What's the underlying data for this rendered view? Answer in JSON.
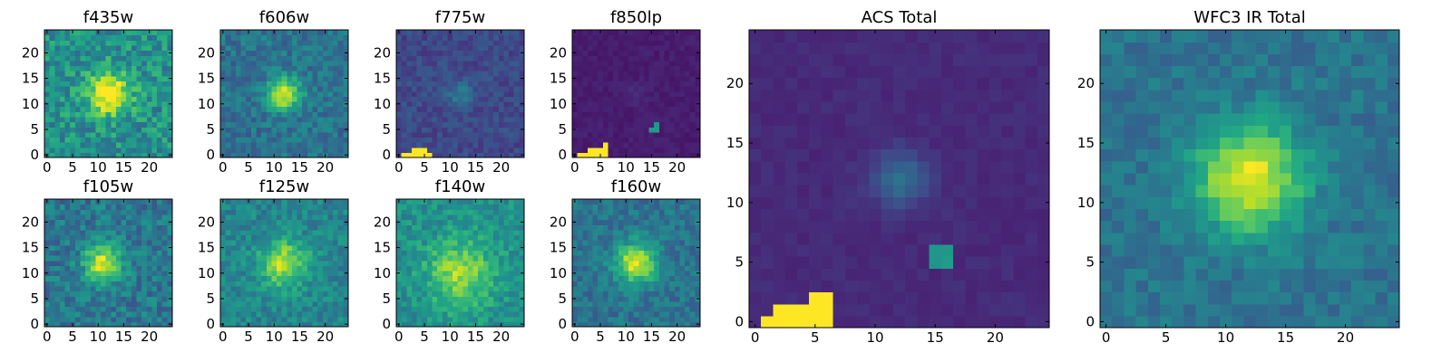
{
  "colormap": "viridis",
  "chart_data": [
    {
      "type": "heatmap",
      "title": "f435w",
      "xticks": [
        0,
        5,
        10,
        15,
        20
      ],
      "yticks": [
        0,
        5,
        10,
        15,
        20
      ],
      "xlim": [
        0,
        24
      ],
      "ylim": [
        0,
        24
      ],
      "grid": false,
      "blob": {
        "x": 12,
        "y": 12,
        "sigma": 3.0,
        "amp": 0.55
      },
      "background": 0.5,
      "noise": 0.32
    },
    {
      "type": "heatmap",
      "title": "f606w",
      "xticks": [
        0,
        5,
        10,
        15,
        20
      ],
      "yticks": [
        0,
        5,
        10,
        15,
        20
      ],
      "xlim": [
        0,
        24
      ],
      "ylim": [
        0,
        24
      ],
      "grid": false,
      "blob": {
        "x": 12,
        "y": 12,
        "sigma": 2.2,
        "amp": 0.6
      },
      "background": 0.38,
      "noise": 0.22
    },
    {
      "type": "heatmap",
      "title": "f775w",
      "xticks": [
        0,
        5,
        10,
        15,
        20
      ],
      "yticks": [
        0,
        5,
        10,
        15,
        20
      ],
      "xlim": [
        0,
        24
      ],
      "ylim": [
        0,
        24
      ],
      "grid": false,
      "blob": {
        "x": 12,
        "y": 12,
        "sigma": 1.8,
        "amp": 0.2
      },
      "background": 0.22,
      "noise": 0.14,
      "hot_pixels": [
        [
          1,
          0
        ],
        [
          2,
          0
        ],
        [
          3,
          0
        ],
        [
          4,
          0
        ],
        [
          5,
          0
        ],
        [
          6,
          0
        ],
        [
          3,
          1
        ],
        [
          4,
          1
        ],
        [
          5,
          1
        ]
      ]
    },
    {
      "type": "heatmap",
      "title": "f850lp",
      "xticks": [
        0,
        5,
        10,
        15,
        20
      ],
      "yticks": [
        0,
        5,
        10,
        15,
        20
      ],
      "xlim": [
        0,
        24
      ],
      "ylim": [
        0,
        24
      ],
      "grid": false,
      "blob": {
        "x": 12,
        "y": 12,
        "sigma": 1.5,
        "amp": 0.05
      },
      "background": 0.08,
      "noise": 0.05,
      "hot_pixels": [
        [
          1,
          0
        ],
        [
          2,
          0
        ],
        [
          3,
          0
        ],
        [
          4,
          0
        ],
        [
          5,
          0
        ],
        [
          6,
          0
        ],
        [
          3,
          1
        ],
        [
          4,
          1
        ],
        [
          5,
          1
        ],
        [
          6,
          1
        ],
        [
          6,
          2
        ]
      ],
      "warm_pixels": [
        [
          15,
          5
        ],
        [
          16,
          6
        ],
        [
          16,
          5
        ]
      ]
    },
    {
      "type": "heatmap",
      "title": "ACS Total",
      "xticks": [
        0,
        5,
        10,
        15,
        20
      ],
      "yticks": [
        0,
        5,
        10,
        15,
        20
      ],
      "xlim": [
        0,
        24
      ],
      "ylim": [
        0,
        24
      ],
      "grid": false,
      "blob": {
        "x": 12,
        "y": 12,
        "sigma": 1.6,
        "amp": 0.25
      },
      "background": 0.12,
      "noise": 0.05,
      "hot_pixels": [
        [
          1,
          0
        ],
        [
          2,
          0
        ],
        [
          3,
          0
        ],
        [
          4,
          0
        ],
        [
          5,
          0
        ],
        [
          6,
          0
        ],
        [
          2,
          1
        ],
        [
          3,
          1
        ],
        [
          4,
          1
        ],
        [
          5,
          1
        ],
        [
          6,
          1
        ],
        [
          5,
          2
        ],
        [
          6,
          2
        ]
      ],
      "warm_pixels": [
        [
          15,
          5
        ],
        [
          16,
          5
        ],
        [
          16,
          6
        ],
        [
          15,
          6
        ]
      ]
    },
    {
      "type": "heatmap",
      "title": "WFC3 IR Total",
      "xticks": [
        0,
        5,
        10,
        15,
        20
      ],
      "yticks": [
        0,
        5,
        10,
        15,
        20
      ],
      "xlim": [
        0,
        24
      ],
      "ylim": [
        0,
        24
      ],
      "grid": false,
      "blob": {
        "x": 12,
        "y": 12,
        "sigma": 3.2,
        "amp": 0.6
      },
      "background": 0.38,
      "noise": 0.16
    },
    {
      "type": "heatmap",
      "title": "f105w",
      "xticks": [
        0,
        5,
        10,
        15,
        20
      ],
      "yticks": [
        0,
        5,
        10,
        15,
        20
      ],
      "xlim": [
        0,
        24
      ],
      "ylim": [
        0,
        24
      ],
      "grid": false,
      "blob": {
        "x": 11,
        "y": 12,
        "sigma": 2.5,
        "amp": 0.55
      },
      "background": 0.4,
      "noise": 0.26
    },
    {
      "type": "heatmap",
      "title": "f125w",
      "xticks": [
        0,
        5,
        10,
        15,
        20
      ],
      "yticks": [
        0,
        5,
        10,
        15,
        20
      ],
      "xlim": [
        0,
        24
      ],
      "ylim": [
        0,
        24
      ],
      "grid": false,
      "blob": {
        "x": 12,
        "y": 12,
        "sigma": 3.2,
        "amp": 0.45
      },
      "background": 0.45,
      "noise": 0.22
    },
    {
      "type": "heatmap",
      "title": "f140w",
      "xticks": [
        0,
        5,
        10,
        15,
        20
      ],
      "yticks": [
        0,
        5,
        10,
        15,
        20
      ],
      "xlim": [
        0,
        24
      ],
      "ylim": [
        0,
        24
      ],
      "grid": false,
      "blob": {
        "x": 12,
        "y": 10,
        "sigma": 4.5,
        "amp": 0.35
      },
      "background": 0.5,
      "noise": 0.22
    },
    {
      "type": "heatmap",
      "title": "f160w",
      "xticks": [
        0,
        5,
        10,
        15,
        20
      ],
      "yticks": [
        0,
        5,
        10,
        15,
        20
      ],
      "xlim": [
        0,
        24
      ],
      "ylim": [
        0,
        24
      ],
      "grid": false,
      "blob": {
        "x": 12,
        "y": 12,
        "sigma": 2.8,
        "amp": 0.6
      },
      "background": 0.38,
      "noise": 0.2
    }
  ]
}
